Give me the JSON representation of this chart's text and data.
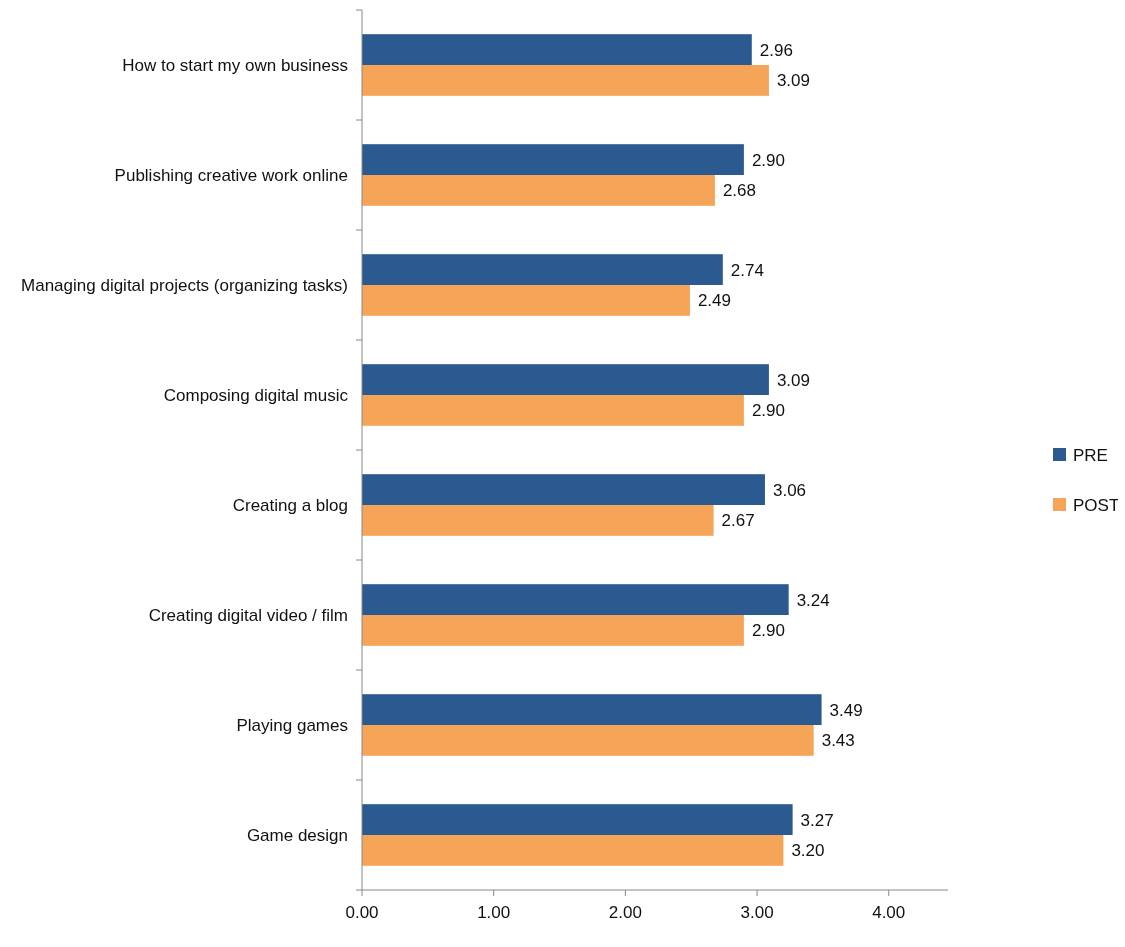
{
  "chart_data": {
    "type": "bar",
    "orientation": "horizontal",
    "categories": [
      "How to start my own business",
      "Publishing creative work online",
      "Managing digital projects (organizing tasks)",
      "Composing digital music",
      "Creating a blog",
      "Creating digital video / film",
      "Playing games",
      "Game design"
    ],
    "series": [
      {
        "name": "PRE",
        "color": "#2a5a8f",
        "values": [
          2.96,
          2.9,
          2.74,
          3.09,
          3.06,
          3.24,
          3.49,
          3.27
        ],
        "value_labels": [
          "2.96",
          "2.90",
          "2.74",
          "3.09",
          "3.06",
          "3.24",
          "3.49",
          "3.27"
        ]
      },
      {
        "name": "POST",
        "color": "#f6a457",
        "values": [
          3.09,
          2.68,
          2.49,
          2.9,
          2.67,
          2.9,
          3.43,
          3.2
        ],
        "value_labels": [
          "3.09",
          "2.68",
          "2.49",
          "2.90",
          "2.67",
          "2.90",
          "3.43",
          "3.20"
        ]
      }
    ],
    "xlim": [
      0,
      4.45
    ],
    "xticks": [
      {
        "value": 0,
        "label": "0.00"
      },
      {
        "value": 1,
        "label": "1.00"
      },
      {
        "value": 2,
        "label": "2.00"
      },
      {
        "value": 3,
        "label": "3.00"
      },
      {
        "value": 4,
        "label": "4.00"
      }
    ],
    "grid": false,
    "legend": "right"
  }
}
